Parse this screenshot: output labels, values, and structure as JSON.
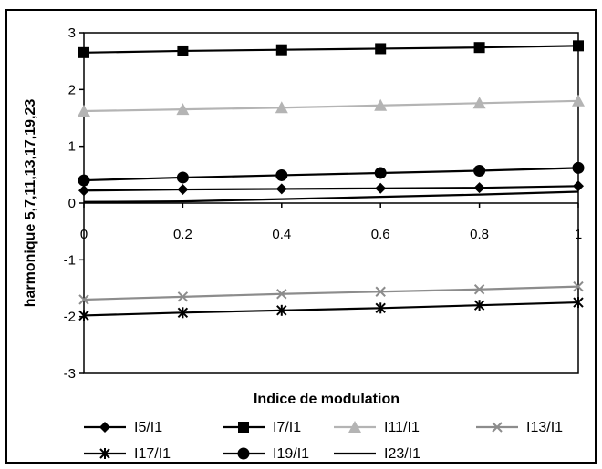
{
  "chart_data": {
    "type": "line",
    "title": "",
    "xlabel": "Indice de modulation",
    "ylabel": "harmonique 5,7,11,13,17,19,23",
    "xlim": [
      0,
      1
    ],
    "ylim": [
      -3,
      3
    ],
    "x_ticks": [
      "0",
      "0.2",
      "0.4",
      "0.6",
      "0.8",
      "1"
    ],
    "y_ticks": [
      "-3",
      "-2",
      "-1",
      "0",
      "1",
      "2",
      "3"
    ],
    "grid": false,
    "legend_position": "bottom",
    "x": [
      0,
      0.2,
      0.4,
      0.6,
      0.8,
      1
    ],
    "series": [
      {
        "name": "I5/I1",
        "marker": "diamond",
        "color": "#000000",
        "values": [
          0.22,
          0.24,
          0.25,
          0.26,
          0.27,
          0.3
        ]
      },
      {
        "name": "I7/I1",
        "marker": "square",
        "color": "#000000",
        "values": [
          2.65,
          2.68,
          2.7,
          2.72,
          2.74,
          2.77
        ]
      },
      {
        "name": "I11/I1",
        "marker": "triangle",
        "color": "#b4b4b4",
        "values": [
          1.62,
          1.65,
          1.68,
          1.72,
          1.76,
          1.8
        ]
      },
      {
        "name": "I13/I1",
        "marker": "x",
        "color": "#8c8c8c",
        "values": [
          -1.7,
          -1.65,
          -1.6,
          -1.56,
          -1.52,
          -1.47
        ]
      },
      {
        "name": "I17/I1",
        "marker": "star",
        "color": "#000000",
        "values": [
          -1.98,
          -1.93,
          -1.89,
          -1.85,
          -1.8,
          -1.75
        ]
      },
      {
        "name": "I19/I1",
        "marker": "circle",
        "color": "#000000",
        "values": [
          0.4,
          0.45,
          0.49,
          0.53,
          0.57,
          0.62
        ]
      },
      {
        "name": "I23/I1",
        "marker": "none",
        "color": "#000000",
        "values": [
          0.02,
          0.03,
          0.07,
          0.11,
          0.15,
          0.2
        ]
      }
    ]
  }
}
